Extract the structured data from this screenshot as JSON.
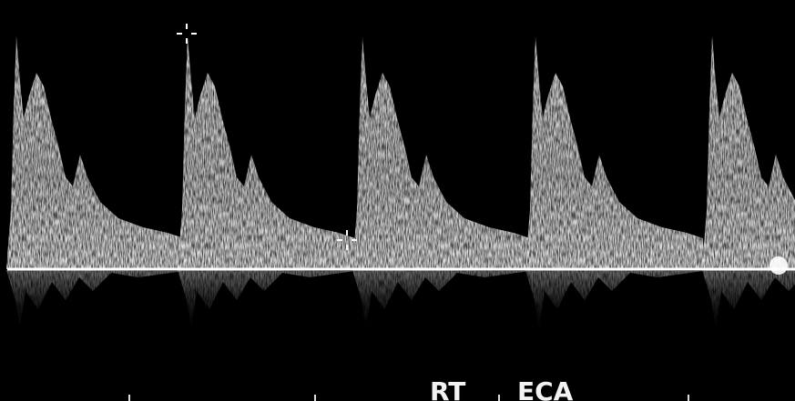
{
  "labels": {
    "side": "RT",
    "vessel": "ECA"
  }
}
